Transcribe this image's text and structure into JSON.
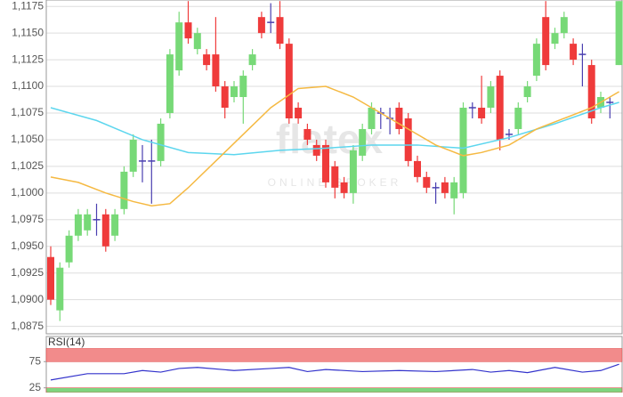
{
  "chart_data": [
    {
      "type": "candlestick",
      "watermark": "flatex",
      "watermark_sub": "ONLINE BROKER",
      "up_color": "#77d977",
      "down_color": "#ef3b3b",
      "doji_color": "#4a3fb0",
      "ylim": [
        1.0868,
        1.1181
      ],
      "yticks": [
        {
          "value": 1.0875,
          "label": "1,0875"
        },
        {
          "value": 1.09,
          "label": "1,0900"
        },
        {
          "value": 1.0925,
          "label": "1,0925"
        },
        {
          "value": 1.095,
          "label": "1,0950"
        },
        {
          "value": 1.0975,
          "label": "1,0975"
        },
        {
          "value": 1.1,
          "label": "1,1000"
        },
        {
          "value": 1.1025,
          "label": "1,1025"
        },
        {
          "value": 1.105,
          "label": "1,1050"
        },
        {
          "value": 1.1075,
          "label": "1,1075"
        },
        {
          "value": 1.11,
          "label": "1,1100"
        },
        {
          "value": 1.1125,
          "label": "1,1125"
        },
        {
          "value": 1.115,
          "label": "1,1150"
        },
        {
          "value": 1.1175,
          "label": "1,1175"
        }
      ],
      "grid": true,
      "open": [
        1.094,
        1.089,
        1.0935,
        1.096,
        1.0965,
        1.0975,
        1.098,
        1.096,
        1.0985,
        1.102,
        1.103,
        1.103,
        1.103,
        1.1075,
        1.1115,
        1.116,
        1.1135,
        1.113,
        1.113,
        1.11,
        1.109,
        1.109,
        1.112,
        1.1165,
        1.116,
        1.1165,
        1.114,
        1.108,
        1.106,
        1.1045,
        1.1045,
        1.1025,
        1.101,
        1.1,
        1.1035,
        1.106,
        1.1075,
        1.107,
        1.108,
        1.107,
        1.103,
        1.1015,
        1.1005,
        1.101,
        1.0995,
        1.1,
        1.108,
        1.108,
        1.108,
        1.111,
        1.1055,
        1.106,
        1.109,
        1.111,
        1.1165,
        1.114,
        1.115,
        1.114,
        1.113,
        1.112,
        1.108,
        1.1085,
        1.112
      ],
      "close": [
        1.09,
        1.093,
        1.096,
        1.098,
        1.098,
        1.0975,
        1.095,
        1.098,
        1.102,
        1.105,
        1.103,
        1.103,
        1.1065,
        1.113,
        1.116,
        1.1145,
        1.115,
        1.112,
        1.11,
        1.108,
        1.11,
        1.111,
        1.113,
        1.115,
        1.116,
        1.114,
        1.107,
        1.107,
        1.105,
        1.1035,
        1.101,
        1.1005,
        1.1,
        1.104,
        1.106,
        1.108,
        1.1075,
        1.107,
        1.106,
        1.103,
        1.1015,
        1.1005,
        1.1005,
        1.1,
        1.101,
        1.108,
        1.108,
        1.107,
        1.11,
        1.105,
        1.1055,
        1.108,
        1.11,
        1.114,
        1.112,
        1.115,
        1.1165,
        1.1125,
        1.113,
        1.107,
        1.109,
        1.1085,
        1.118
      ],
      "high": [
        1.095,
        1.0935,
        1.0965,
        1.0985,
        1.0985,
        1.099,
        1.0985,
        1.0985,
        1.1025,
        1.1055,
        1.1045,
        1.105,
        1.107,
        1.1135,
        1.117,
        1.118,
        1.1155,
        1.1135,
        1.1165,
        1.1105,
        1.1105,
        1.1115,
        1.1135,
        1.117,
        1.1178,
        1.118,
        1.1145,
        1.1085,
        1.1065,
        1.105,
        1.105,
        1.103,
        1.1015,
        1.1045,
        1.1065,
        1.1085,
        1.108,
        1.108,
        1.1085,
        1.1075,
        1.1035,
        1.102,
        1.101,
        1.1015,
        1.1015,
        1.1085,
        1.1085,
        1.111,
        1.1105,
        1.1115,
        1.106,
        1.1085,
        1.1105,
        1.1145,
        1.118,
        1.1155,
        1.117,
        1.1145,
        1.114,
        1.1125,
        1.1095,
        1.109,
        1.118
      ],
      "low": [
        1.0895,
        1.088,
        1.093,
        1.0955,
        1.096,
        1.096,
        1.0945,
        1.0955,
        1.098,
        1.1015,
        1.101,
        1.099,
        1.1025,
        1.107,
        1.111,
        1.114,
        1.113,
        1.1115,
        1.1095,
        1.107,
        1.1085,
        1.1065,
        1.1115,
        1.1145,
        1.115,
        1.1135,
        1.1065,
        1.1065,
        1.1045,
        1.103,
        1.1005,
        1.0995,
        1.0995,
        1.099,
        1.103,
        1.1055,
        1.106,
        1.1055,
        1.1055,
        1.1025,
        1.101,
        1.1,
        1.099,
        1.0995,
        1.098,
        1.0995,
        1.107,
        1.1065,
        1.1075,
        1.104,
        1.105,
        1.1055,
        1.1085,
        1.1105,
        1.1115,
        1.1135,
        1.1145,
        1.112,
        1.11,
        1.1065,
        1.1075,
        1.107,
        1.112
      ],
      "series": [
        {
          "color": "#5cd6ee",
          "x": [
            0,
            5,
            10,
            15,
            20,
            25,
            30,
            35,
            40,
            45,
            50,
            55,
            60,
            62
          ],
          "values": [
            1.108,
            1.1068,
            1.105,
            1.1038,
            1.1036,
            1.104,
            1.1042,
            1.1045,
            1.1045,
            1.1042,
            1.1052,
            1.1065,
            1.108,
            1.1085
          ]
        },
        {
          "color": "#f5b942",
          "x": [
            0,
            3,
            6,
            9,
            11,
            13,
            15,
            18,
            21,
            24,
            27,
            30,
            33,
            36,
            39,
            42,
            45,
            47,
            50,
            53,
            56,
            59,
            62
          ],
          "values": [
            1.1015,
            1.101,
            1.1,
            1.0992,
            1.0988,
            1.099,
            1.1005,
            1.103,
            1.1055,
            1.108,
            1.1098,
            1.11,
            1.109,
            1.1075,
            1.106,
            1.1045,
            1.1035,
            1.1038,
            1.1045,
            1.106,
            1.107,
            1.108,
            1.1095
          ]
        }
      ]
    },
    {
      "type": "line",
      "title": "RSI(14)",
      "color": "#3333cc",
      "ylim": [
        16,
        123
      ],
      "yticks": [
        25,
        75
      ],
      "bands": [
        {
          "from": 75,
          "to": 100,
          "color": "#f28b8b"
        },
        {
          "from": 0,
          "to": 25,
          "color": "#7fd47f"
        }
      ],
      "x": [
        0,
        4,
        8,
        10,
        12,
        14,
        16,
        20,
        24,
        26,
        28,
        30,
        34,
        38,
        42,
        46,
        48,
        50,
        52,
        55,
        58,
        60,
        62
      ],
      "values": [
        40,
        52,
        52,
        58,
        55,
        62,
        64,
        58,
        62,
        64,
        56,
        60,
        56,
        58,
        56,
        60,
        55,
        58,
        54,
        64,
        55,
        58,
        70
      ]
    }
  ]
}
